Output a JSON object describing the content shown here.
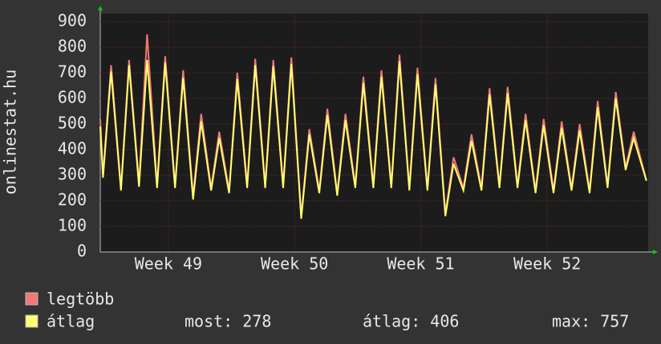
{
  "chart_data": {
    "type": "line",
    "y_axis_label": "onlinestat.hu",
    "x": [
      0,
      0.15,
      0.6,
      1.15,
      1.6,
      2.15,
      2.6,
      3.15,
      3.6,
      4.15,
      4.6,
      5.15,
      5.6,
      6.15,
      6.6,
      7.15,
      7.6,
      8.15,
      8.6,
      9.15,
      9.6,
      10.15,
      10.6,
      11.15,
      11.6,
      12.15,
      12.6,
      13.15,
      13.6,
      14.15,
      14.6,
      15.15,
      15.6,
      16.15,
      16.6,
      17.15,
      17.6,
      18.15,
      18.6,
      19.15,
      19.6,
      20.15,
      20.6,
      21.15,
      21.6,
      22.15,
      22.6,
      23.15,
      23.6,
      24.15,
      24.6,
      25.15,
      25.6,
      26.15,
      26.6,
      27.15,
      27.6,
      28.15,
      28.6,
      29.15,
      29.6,
      30.3
    ],
    "series": [
      {
        "name": "legtöbb",
        "color": "#f07878",
        "values": [
          520,
          300,
          730,
          250,
          750,
          270,
          850,
          260,
          765,
          260,
          710,
          220,
          540,
          250,
          470,
          240,
          700,
          260,
          755,
          260,
          750,
          260,
          760,
          140,
          480,
          240,
          560,
          230,
          540,
          260,
          685,
          260,
          710,
          260,
          770,
          250,
          720,
          250,
          680,
          150,
          370,
          250,
          460,
          250,
          640,
          260,
          645,
          260,
          540,
          240,
          520,
          240,
          510,
          250,
          500,
          240,
          590,
          260,
          625,
          330,
          470,
          280
        ]
      },
      {
        "name": "átlag",
        "color": "#ffff70",
        "values": [
          490,
          290,
          705,
          240,
          730,
          255,
          750,
          250,
          740,
          250,
          680,
          205,
          510,
          240,
          445,
          230,
          675,
          250,
          730,
          250,
          725,
          250,
          735,
          130,
          460,
          230,
          535,
          220,
          515,
          250,
          660,
          250,
          685,
          250,
          745,
          240,
          695,
          240,
          655,
          140,
          345,
          240,
          435,
          240,
          615,
          250,
          620,
          250,
          515,
          230,
          495,
          230,
          485,
          240,
          475,
          230,
          565,
          250,
          600,
          320,
          445,
          278
        ]
      }
    ],
    "stats": [
      "most: 278",
      "átlag: 406",
      "max: 757"
    ],
    "xlim": [
      0,
      30.4
    ],
    "xticks": [
      {
        "value": 3.78,
        "label": "Week 49"
      },
      {
        "value": 10.78,
        "label": "Week 50"
      },
      {
        "value": 17.78,
        "label": "Week 51"
      },
      {
        "value": 24.8,
        "label": "Week 52"
      }
    ],
    "ylim": [
      0,
      900
    ],
    "yticks": [
      0,
      100,
      200,
      300,
      400,
      500,
      600,
      700,
      800,
      900
    ],
    "grid": true
  }
}
